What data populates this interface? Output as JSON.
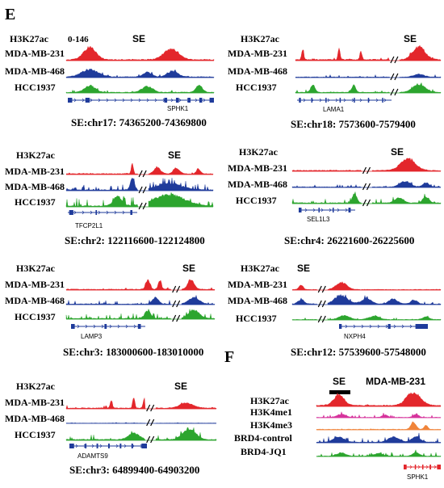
{
  "panel_labels": {
    "e": "E",
    "f": "F"
  },
  "colors": {
    "red": "#e3262b",
    "blue": "#1f3b9b",
    "green": "#2ca52e",
    "magenta": "#d6339c",
    "orange": "#f0843a",
    "gene": "#1f3b9b",
    "gene_f": "#e3262b"
  },
  "panels": [
    {
      "id": "sphk1",
      "header": "H3K27ac",
      "scale": "0-146",
      "se": "SE",
      "tracks": [
        "MDA-MB-231",
        "MDA-MB-468",
        "HCC1937"
      ],
      "gene": "SPHK1",
      "coord": "SE:chr17:  74365200-74369800"
    },
    {
      "id": "lama1",
      "header": "H3K27ac",
      "se": "SE",
      "tracks": [
        "MDA-MB-231",
        "MDA-MB-468",
        "HCC1937"
      ],
      "gene": "LAMA1",
      "coord": "SE:chr18:  7573600-7579400"
    },
    {
      "id": "tfcp2l1",
      "header": "H3K27ac",
      "se": "SE",
      "tracks": [
        "MDA-MB-231",
        "MDA-MB-468",
        "HCC1937"
      ],
      "gene": "TFCP2L1",
      "coord": "SE:chr2:  122116600-122124800"
    },
    {
      "id": "sel1l3",
      "header": "H3K27ac",
      "se": "SE",
      "tracks": [
        "MDA-MB-231",
        "MDA-MB-468",
        "HCC1937"
      ],
      "gene": "SEL1L3",
      "coord": "SE:chr4:  26221600-26225600"
    },
    {
      "id": "lamp3",
      "header": "H3K27ac",
      "se": "SE",
      "tracks": [
        "MDA-MB-231",
        "MDA-MB-468",
        "HCC1937"
      ],
      "gene": "LAMP3",
      "coord": "SE:chr3:  183000600-183010000"
    },
    {
      "id": "nxph4",
      "header": "H3K27ac",
      "se": "SE",
      "tracks": [
        "MDA-MB-231",
        "MDA-MB-468",
        "HCC1937"
      ],
      "gene": "NXPH4",
      "coord": "SE:chr12:  57539600-57548000"
    },
    {
      "id": "adamts9",
      "header": "H3K27ac",
      "se": "SE",
      "tracks": [
        "MDA-MB-231",
        "MDA-MB-468",
        "HCC1937"
      ],
      "gene": "ADAMTS9",
      "coord": "SE:chr3:  64899400-64903200"
    }
  ],
  "panel_f": {
    "se": "SE",
    "cell_line": "MDA-MB-231",
    "tracks": [
      "H3K27ac",
      "H3K4me1",
      "H3K4me3",
      "BRD4-control",
      "BRD4-JQ1"
    ],
    "gene": "SPHK1"
  }
}
